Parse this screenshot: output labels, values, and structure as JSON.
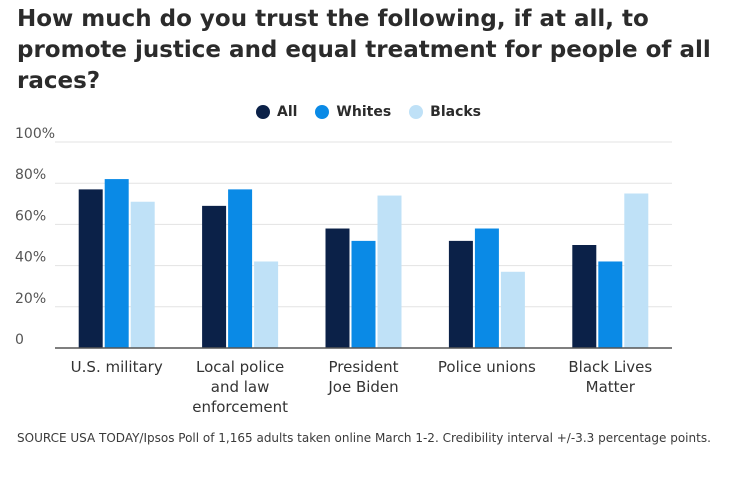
{
  "chart_data": {
    "type": "bar",
    "title": "How much do you trust the following, if at all, to promote justice and equal treatment for people of all races?",
    "categories": [
      [
        "U.S. military"
      ],
      [
        "Local police",
        "and law",
        "enforcement"
      ],
      [
        "President",
        "Joe Biden"
      ],
      [
        "Police unions"
      ],
      [
        "Black Lives",
        "Matter"
      ]
    ],
    "series": [
      {
        "name": "All",
        "color": "#0b2148",
        "values": [
          77,
          69,
          58,
          52,
          50
        ]
      },
      {
        "name": "Whites",
        "color": "#0a8ae6",
        "values": [
          82,
          77,
          52,
          58,
          42
        ]
      },
      {
        "name": "Blacks",
        "color": "#bfe1f7",
        "values": [
          71,
          42,
          74,
          37,
          75
        ]
      }
    ],
    "ylim": [
      0,
      100
    ],
    "yticks": [
      "0",
      "20%",
      "40%",
      "60%",
      "80%",
      "100%"
    ],
    "grid": true,
    "legend_position": "top-center",
    "source": "SOURCE USA TODAY/Ipsos Poll of 1,165 adults taken online March 1-2. Credibility interval +/-3.3 percentage points."
  }
}
